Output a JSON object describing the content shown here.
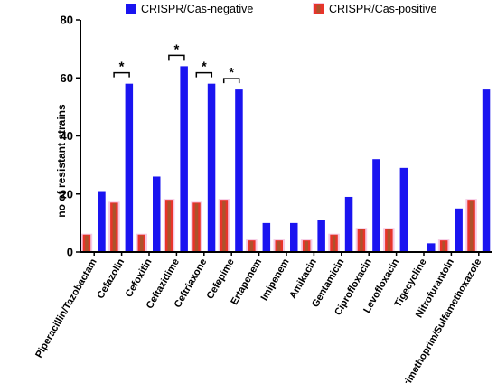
{
  "chart_data": {
    "type": "bar",
    "ylabel": "no of resistant strains",
    "xlabel": "",
    "ylim": [
      0,
      80
    ],
    "yticks": [
      0,
      20,
      40,
      60,
      80
    ],
    "legend_position": "top",
    "categories": [
      "Piperacillin/Tazobactam",
      "Cefazolin",
      "Cefoxitin",
      "Ceftazidime",
      "Ceftriaxone",
      "Cefepime",
      "Ertapenem",
      "Imipenem",
      "Amikacin",
      "Gentamicin",
      "Ciprofloxacin",
      "Levofloxacin",
      "Tigecycline",
      "Nitrofurantoin",
      "Trimethoprim/Sulfamethoxazole"
    ],
    "series": [
      {
        "name": "CRISPR/Cas-positive",
        "color": "#e8342a",
        "values": [
          6,
          17,
          6,
          18,
          17,
          18,
          4,
          4,
          4,
          6,
          8,
          8,
          0,
          4,
          18
        ]
      },
      {
        "name": "CRISPR/Cas-negative",
        "color": "#1a14f0",
        "values": [
          21,
          58,
          26,
          64,
          58,
          56,
          10,
          10,
          11,
          19,
          32,
          29,
          3,
          15,
          56
        ]
      }
    ],
    "significance": [
      {
        "category": "Cefazolin",
        "label": "*"
      },
      {
        "category": "Ceftazidime",
        "label": "*"
      },
      {
        "category": "Ceftriaxone",
        "label": "*"
      },
      {
        "category": "Cefepime",
        "label": "*"
      }
    ]
  }
}
